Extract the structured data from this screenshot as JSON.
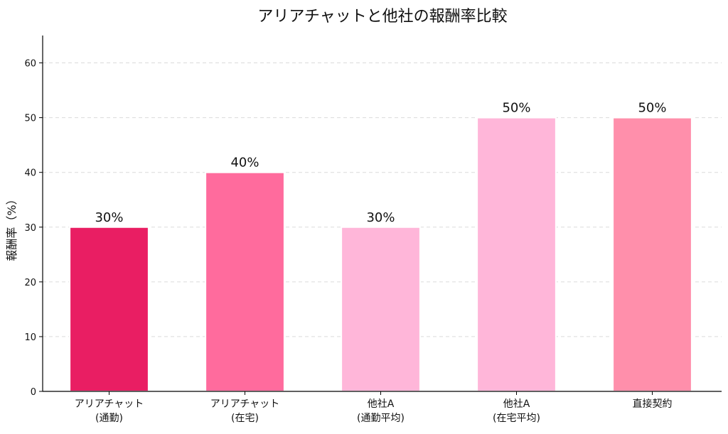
{
  "chart_data": {
    "type": "bar",
    "title": "アリアチャットと他社の報酬率比較",
    "xlabel": "",
    "ylabel": "報酬率（%）",
    "ylim": [
      0,
      65
    ],
    "yticks": [
      0,
      10,
      20,
      30,
      40,
      50,
      60
    ],
    "grid": "horizontal-dashed",
    "categories": [
      [
        "アリアチャット",
        "(通勤)"
      ],
      [
        "アリアチャット",
        "(在宅)"
      ],
      [
        "他社A",
        "(通勤平均)"
      ],
      [
        "他社A",
        "(在宅平均)"
      ],
      [
        "直接契約"
      ]
    ],
    "values": [
      30,
      40,
      30,
      50,
      50
    ],
    "data_labels": [
      "30%",
      "40%",
      "30%",
      "50%",
      "50%"
    ],
    "colors": [
      "#e91e63",
      "#ff6b9d",
      "#ffb6d9",
      "#ffb6d9",
      "#ff8fab"
    ]
  }
}
